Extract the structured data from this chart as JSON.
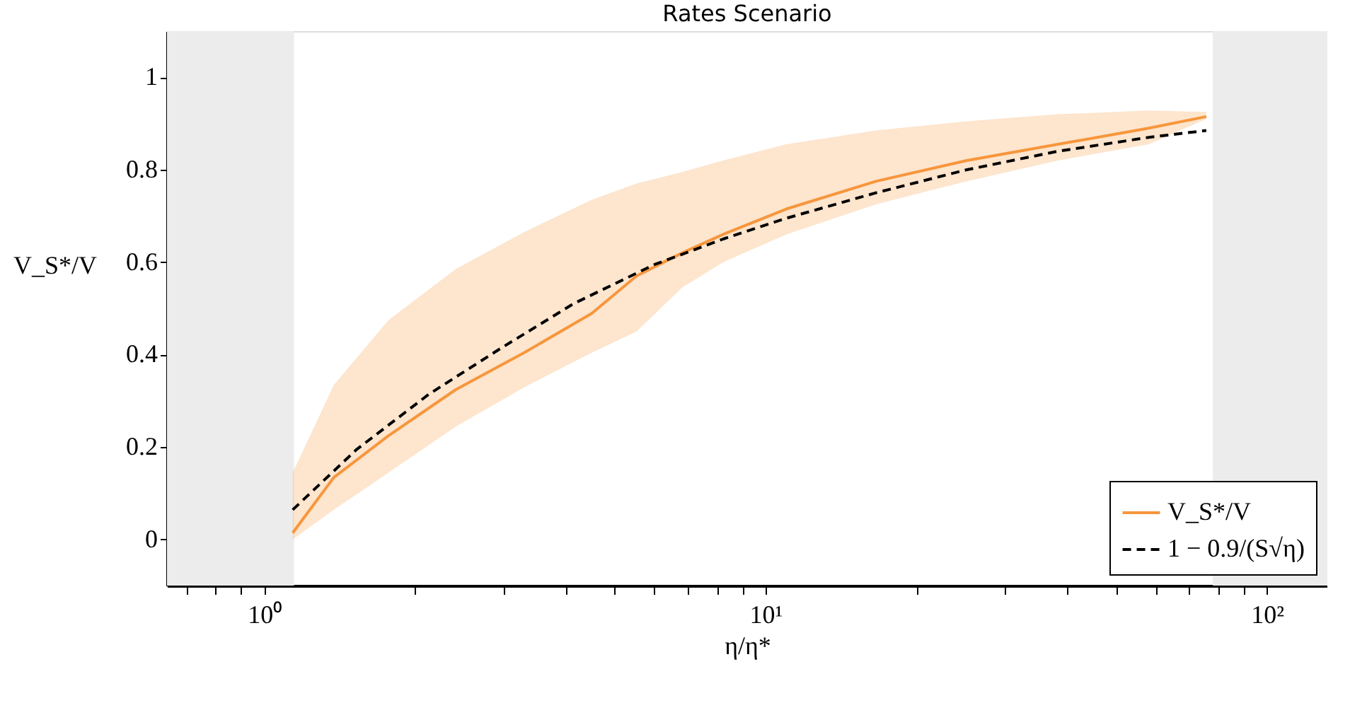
{
  "chart_data": {
    "type": "line",
    "title": "Rates Scenario",
    "xlabel": "η/η*",
    "ylabel": "V_S*/V",
    "log": "x",
    "xlim": [
      0.64,
      132
    ],
    "ylim": [
      -0.1,
      1.1
    ],
    "xticks": [
      {
        "value": 0.7,
        "label": null
      },
      {
        "value": 0.8,
        "label": null
      },
      {
        "value": 0.9,
        "label": null
      },
      {
        "value": 1,
        "label": "10⁰"
      },
      {
        "value": 2,
        "label": null
      },
      {
        "value": 3,
        "label": null
      },
      {
        "value": 4,
        "label": null
      },
      {
        "value": 5,
        "label": null
      },
      {
        "value": 6,
        "label": null
      },
      {
        "value": 7,
        "label": null
      },
      {
        "value": 8,
        "label": null
      },
      {
        "value": 9,
        "label": null
      },
      {
        "value": 10,
        "label": "10¹"
      },
      {
        "value": 20,
        "label": null
      },
      {
        "value": 30,
        "label": null
      },
      {
        "value": 40,
        "label": null
      },
      {
        "value": 50,
        "label": null
      },
      {
        "value": 60,
        "label": null
      },
      {
        "value": 70,
        "label": null
      },
      {
        "value": 80,
        "label": null
      },
      {
        "value": 90,
        "label": null
      },
      {
        "value": 100,
        "label": "10²"
      }
    ],
    "yticks": [
      0,
      0.2,
      0.4,
      0.6,
      0.8,
      1
    ],
    "series": [
      {
        "name": "V_S*/V",
        "color": "#f7963c",
        "line_style": "solid",
        "x": [
          1.14,
          1.377,
          1.768,
          2.41,
          3.3,
          4.5,
          5.53,
          6.82,
          8.23,
          11.0,
          16.6,
          25.2,
          38.3,
          58.1,
          75.7
        ],
        "values": [
          0.014,
          0.134,
          0.224,
          0.324,
          0.404,
          0.489,
          0.57,
          0.62,
          0.66,
          0.715,
          0.775,
          0.82,
          0.855,
          0.89,
          0.915
        ],
        "lower": [
          0.0,
          0.064,
          0.144,
          0.244,
          0.329,
          0.404,
          0.45,
          0.545,
          0.6,
          0.66,
          0.725,
          0.775,
          0.82,
          0.855,
          0.91
        ],
        "upper": [
          0.144,
          0.334,
          0.474,
          0.585,
          0.665,
          0.735,
          0.77,
          0.795,
          0.82,
          0.855,
          0.885,
          0.905,
          0.92,
          0.928,
          0.925
        ]
      },
      {
        "name": "1 − 0.9/(S√η)",
        "color": "#000000",
        "line_style": "dashed",
        "x": [
          1.14,
          1.527,
          2.13,
          2.97,
          4.14,
          6.01,
          8.23,
          11.0,
          16.6,
          25.2,
          38.3,
          58.1,
          75.7
        ],
        "values": [
          0.064,
          0.194,
          0.314,
          0.414,
          0.51,
          0.595,
          0.65,
          0.695,
          0.75,
          0.8,
          0.84,
          0.87,
          0.885
        ]
      }
    ],
    "bands": [
      {
        "axis": "x",
        "from": 0.64,
        "to": 1.147,
        "color": "#ececec"
      },
      {
        "axis": "x",
        "from": 78,
        "to": 132,
        "color": "#ececec"
      }
    ],
    "legend": "bottom right",
    "grid": false
  }
}
